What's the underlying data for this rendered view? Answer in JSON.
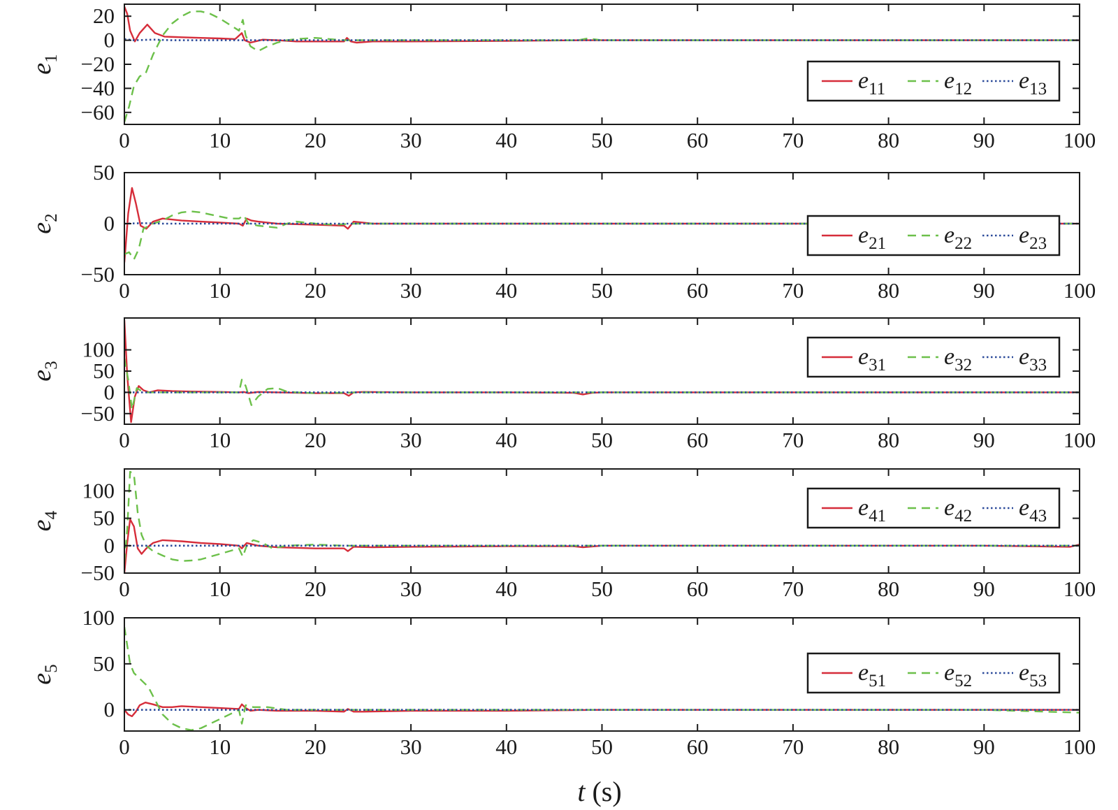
{
  "figure": {
    "xlabel_var": "t",
    "xlabel_unit": " (s)"
  },
  "chart_data": [
    {
      "type": "line",
      "ylabel_base": "e",
      "ylabel_sub": "1",
      "xlim": [
        0,
        100
      ],
      "ylim": [
        -70,
        30
      ],
      "xticks": [
        0,
        10,
        20,
        30,
        40,
        50,
        60,
        70,
        80,
        90,
        100
      ],
      "yticks": [
        20,
        0,
        -20,
        -40,
        -60
      ],
      "ytick_labels": [
        "20",
        "0",
        "−20",
        "−40",
        "−60"
      ],
      "legend": {
        "position": "lower-right"
      },
      "series": [
        {
          "name_base": "e",
          "name_sub": "11",
          "color": "#d62d3a",
          "style": "solid",
          "x": [
            0,
            0.3,
            0.6,
            1.1,
            1.6,
            2.4,
            3.2,
            4.2,
            6,
            8,
            10,
            11.6,
            12.3,
            12.6,
            13.2,
            14.5,
            16,
            18,
            20,
            23,
            23.3,
            23.7,
            24.3,
            26,
            30,
            40,
            48,
            50,
            60,
            70,
            80,
            90,
            100
          ],
          "y": [
            28,
            22,
            8,
            -1,
            6,
            13,
            6,
            3,
            2.5,
            2,
            1.5,
            1,
            6,
            0,
            -2,
            0.5,
            0,
            -1,
            -1,
            -1,
            2,
            -1,
            -2,
            -1,
            -1,
            -0.5,
            0,
            0,
            0,
            0,
            0,
            0,
            0
          ]
        },
        {
          "name_base": "e",
          "name_sub": "12",
          "color": "#6cc04a",
          "style": "dashed",
          "x": [
            0,
            0.5,
            1,
            1.6,
            2.2,
            3,
            4,
            5,
            6,
            7,
            8,
            9,
            10,
            11,
            12,
            12.4,
            12.7,
            13.2,
            14,
            15,
            16,
            17,
            18,
            20,
            23,
            24,
            26,
            30,
            40,
            47.5,
            48.5,
            50,
            60,
            70,
            80,
            90,
            100
          ],
          "y": [
            -68,
            -55,
            -38,
            -30,
            -28,
            -12,
            4,
            14,
            20,
            24,
            24,
            22,
            18,
            13,
            8,
            17,
            4,
            -5,
            -9,
            -5,
            -2,
            0,
            1,
            2,
            0,
            0,
            0,
            0,
            0,
            0,
            1.5,
            0,
            0,
            0,
            0,
            0,
            0
          ]
        },
        {
          "name_base": "e",
          "name_sub": "13",
          "color": "#2b4a9a",
          "style": "dotted",
          "x": [
            0,
            1,
            3,
            5,
            100
          ],
          "y": [
            1,
            0,
            0.5,
            0,
            0
          ]
        }
      ]
    },
    {
      "type": "line",
      "ylabel_base": "e",
      "ylabel_sub": "2",
      "xlim": [
        0,
        100
      ],
      "ylim": [
        -50,
        50
      ],
      "xticks": [
        0,
        10,
        20,
        30,
        40,
        50,
        60,
        70,
        80,
        90,
        100
      ],
      "yticks": [
        50,
        0,
        -50
      ],
      "ytick_labels": [
        "50",
        "0",
        "−50"
      ],
      "legend": {
        "position": "lower-right"
      },
      "series": [
        {
          "name_base": "e",
          "name_sub": "21",
          "color": "#d62d3a",
          "style": "solid",
          "x": [
            0,
            0.4,
            0.8,
            1.2,
            1.7,
            2.3,
            3,
            4,
            6,
            8,
            10,
            12,
            12.4,
            12.8,
            13.3,
            14,
            16,
            20,
            23,
            23.4,
            24,
            26,
            30,
            40,
            50,
            60,
            70,
            80,
            90,
            100
          ],
          "y": [
            -38,
            10,
            35,
            20,
            -2,
            -5,
            2,
            5,
            3,
            2,
            1,
            0,
            -2,
            5,
            3,
            2,
            0,
            -1,
            -2,
            -5,
            2,
            0,
            0,
            0,
            0,
            0,
            0,
            0,
            0,
            0
          ]
        },
        {
          "name_base": "e",
          "name_sub": "22",
          "color": "#6cc04a",
          "style": "dashed",
          "x": [
            0,
            0.5,
            1,
            1.5,
            2,
            3,
            4,
            5,
            6,
            7,
            8,
            9,
            10,
            11,
            12,
            12.5,
            13,
            14,
            15,
            16,
            17,
            18,
            19,
            20,
            22,
            24,
            26,
            30,
            40,
            50,
            60,
            70,
            80,
            90,
            100
          ],
          "y": [
            -30,
            -28,
            -35,
            -25,
            -5,
            0,
            3,
            8,
            11,
            12,
            11,
            9,
            7,
            5,
            5,
            8,
            0,
            -2,
            -3,
            -4,
            0,
            2,
            1,
            0,
            -1,
            0,
            0,
            0,
            0,
            0,
            0,
            0,
            0,
            0,
            0
          ]
        },
        {
          "name_base": "e",
          "name_sub": "23",
          "color": "#2b4a9a",
          "style": "dotted",
          "x": [
            0,
            2,
            4,
            100
          ],
          "y": [
            0,
            0.5,
            0,
            0
          ]
        }
      ]
    },
    {
      "type": "line",
      "ylabel_base": "e",
      "ylabel_sub": "3",
      "xlim": [
        0,
        100
      ],
      "ylim": [
        -75,
        175
      ],
      "xticks": [
        0,
        10,
        20,
        30,
        40,
        50,
        60,
        70,
        80,
        90,
        100
      ],
      "yticks": [
        100,
        50,
        0,
        -50
      ],
      "ytick_labels": [
        "100",
        "50",
        "0",
        "−50"
      ],
      "legend": {
        "position": "upper-right"
      },
      "series": [
        {
          "name_base": "e",
          "name_sub": "31",
          "color": "#d62d3a",
          "style": "solid",
          "x": [
            0,
            0.3,
            0.7,
            1.1,
            1.5,
            2,
            2.6,
            3.5,
            5,
            7,
            10,
            12,
            12.5,
            13,
            14,
            16,
            20,
            23,
            23.5,
            24,
            25,
            30,
            40,
            47,
            48,
            49,
            50,
            60,
            70,
            80,
            90,
            100
          ],
          "y": [
            170,
            40,
            -70,
            -10,
            15,
            5,
            0,
            5,
            3,
            2,
            1,
            0,
            1,
            -2,
            1,
            0,
            -2,
            -2,
            -8,
            0,
            1,
            0,
            0,
            -1,
            -5,
            -1,
            0,
            0,
            0,
            0,
            0,
            0
          ]
        },
        {
          "name_base": "e",
          "name_sub": "32",
          "color": "#6cc04a",
          "style": "dashed",
          "x": [
            0,
            0.4,
            0.8,
            1.3,
            2,
            3,
            5,
            10,
            12,
            12.3,
            12.7,
            13.3,
            14,
            15,
            16,
            17,
            18,
            20,
            25,
            30,
            40,
            50,
            60,
            70,
            80,
            90,
            100
          ],
          "y": [
            80,
            30,
            -40,
            10,
            0,
            0,
            0,
            0,
            0,
            30,
            15,
            -30,
            -10,
            8,
            10,
            2,
            0,
            -2,
            0,
            0,
            0,
            0,
            0,
            0,
            0,
            0,
            0
          ]
        },
        {
          "name_base": "e",
          "name_sub": "33",
          "color": "#2b4a9a",
          "style": "dotted",
          "x": [
            0,
            100
          ],
          "y": [
            0,
            0
          ]
        }
      ]
    },
    {
      "type": "line",
      "ylabel_base": "e",
      "ylabel_sub": "4",
      "xlim": [
        0,
        100
      ],
      "ylim": [
        -50,
        140
      ],
      "xticks": [
        0,
        10,
        20,
        30,
        40,
        50,
        60,
        70,
        80,
        90,
        100
      ],
      "yticks": [
        100,
        50,
        0,
        -50
      ],
      "ytick_labels": [
        "100",
        "50",
        "0",
        "−50"
      ],
      "legend": {
        "position": "upper-right"
      },
      "series": [
        {
          "name_base": "e",
          "name_sub": "41",
          "color": "#d62d3a",
          "style": "solid",
          "x": [
            0,
            0.3,
            0.6,
            1,
            1.4,
            1.8,
            2.3,
            3,
            4,
            6,
            8,
            10,
            12,
            12.3,
            12.8,
            14,
            16,
            20,
            23,
            23.4,
            24,
            26,
            30,
            40,
            47,
            48,
            50,
            60,
            70,
            80,
            90,
            99,
            100
          ],
          "y": [
            -50,
            5,
            48,
            35,
            -5,
            -15,
            -5,
            5,
            10,
            8,
            5,
            3,
            0,
            -5,
            5,
            0,
            -3,
            -5,
            -5,
            -10,
            -2,
            -3,
            -2,
            -1,
            -1,
            -3,
            0,
            0,
            0,
            0,
            0,
            -2,
            2
          ]
        },
        {
          "name_base": "e",
          "name_sub": "42",
          "color": "#6cc04a",
          "style": "dashed",
          "x": [
            0,
            0.3,
            0.6,
            1,
            1.4,
            1.8,
            2.3,
            3,
            4,
            5,
            6,
            7,
            8,
            9,
            10,
            11,
            12,
            12.4,
            12.8,
            13.5,
            14.5,
            15.5,
            17,
            20,
            23,
            24,
            30,
            40,
            50,
            60,
            70,
            80,
            90,
            100
          ],
          "y": [
            -30,
            30,
            135,
            130,
            60,
            20,
            0,
            -10,
            -18,
            -25,
            -28,
            -27,
            -25,
            -20,
            -15,
            -10,
            -5,
            -20,
            0,
            10,
            5,
            -5,
            0,
            2,
            0,
            0,
            0,
            0,
            0,
            0,
            0,
            0,
            0,
            0
          ]
        },
        {
          "name_base": "e",
          "name_sub": "43",
          "color": "#2b4a9a",
          "style": "dotted",
          "x": [
            0,
            100
          ],
          "y": [
            0,
            0
          ]
        }
      ]
    },
    {
      "type": "line",
      "ylabel_base": "e",
      "ylabel_sub": "5",
      "xlim": [
        0,
        100
      ],
      "ylim": [
        -23,
        100
      ],
      "xticks": [
        0,
        10,
        20,
        30,
        40,
        50,
        60,
        70,
        80,
        90,
        100
      ],
      "yticks": [
        100,
        50,
        0
      ],
      "ytick_labels": [
        "100",
        "50",
        "0"
      ],
      "legend": {
        "position": "center-right"
      },
      "series": [
        {
          "name_base": "e",
          "name_sub": "51",
          "color": "#d62d3a",
          "style": "solid",
          "x": [
            0,
            0.4,
            0.8,
            1.2,
            1.6,
            2.2,
            3,
            4,
            5,
            6,
            8,
            10,
            12,
            12.3,
            12.7,
            13.2,
            14,
            16,
            20,
            23,
            23.4,
            24,
            25,
            30,
            40,
            50,
            60,
            70,
            80,
            90,
            100
          ],
          "y": [
            0,
            -5,
            -7,
            -2,
            5,
            8,
            6,
            3,
            3,
            4,
            3,
            2,
            1,
            6,
            2,
            -1,
            0,
            -1,
            -1,
            -2,
            1,
            -2,
            -2,
            -1,
            -1,
            0,
            0,
            0,
            0,
            0,
            0
          ]
        },
        {
          "name_base": "e",
          "name_sub": "52",
          "color": "#6cc04a",
          "style": "dashed",
          "x": [
            0,
            0.3,
            0.6,
            1,
            1.5,
            2,
            2.5,
            3,
            4,
            5,
            6,
            7,
            8,
            9,
            10,
            11,
            12,
            12.3,
            12.7,
            13.5,
            15,
            17,
            20,
            25,
            30,
            40,
            50,
            60,
            70,
            80,
            90,
            100
          ],
          "y": [
            90,
            70,
            50,
            40,
            35,
            30,
            25,
            15,
            -5,
            -15,
            -20,
            -22,
            -20,
            -15,
            -10,
            -5,
            0,
            -15,
            5,
            3,
            3,
            0,
            0,
            0,
            0,
            0,
            0,
            0,
            0,
            0,
            0,
            -3
          ]
        },
        {
          "name_base": "e",
          "name_sub": "53",
          "color": "#2b4a9a",
          "style": "dotted",
          "x": [
            0,
            100
          ],
          "y": [
            0,
            0
          ]
        }
      ]
    }
  ]
}
